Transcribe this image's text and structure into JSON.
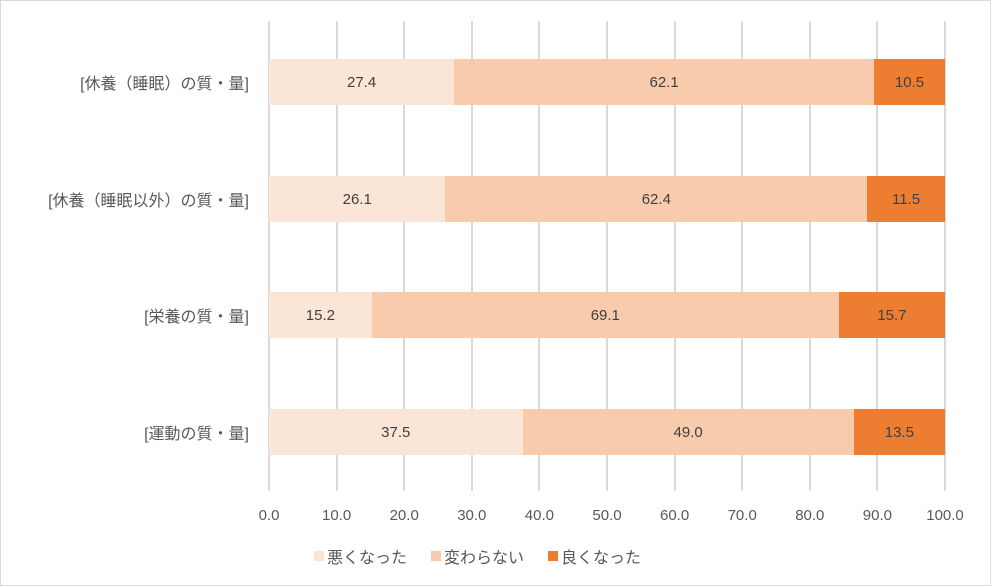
{
  "chart_data": {
    "type": "bar",
    "orientation": "horizontal",
    "stacked": true,
    "title": "",
    "xlabel": "",
    "ylabel": "",
    "xlim": [
      0,
      100
    ],
    "x_ticks": [
      "0.0",
      "10.0",
      "20.0",
      "30.0",
      "40.0",
      "50.0",
      "60.0",
      "70.0",
      "80.0",
      "90.0",
      "100.0"
    ],
    "grid": true,
    "legend_position": "bottom",
    "categories": [
      "[休養（睡眠）の質・量]",
      "[休養（睡眠以外）の質・量]",
      "[栄養の質・量]",
      "[運動の質・量]"
    ],
    "series": [
      {
        "name": "悪くなった",
        "color": "#fbe5d6",
        "values": [
          27.4,
          26.1,
          15.2,
          37.5
        ],
        "labels": [
          "27.4",
          "26.1",
          "15.2",
          "37.5"
        ]
      },
      {
        "name": "変わらない",
        "color": "#f8cbad",
        "values": [
          62.1,
          62.4,
          69.1,
          49.0
        ],
        "labels": [
          "62.1",
          "62.4",
          "69.1",
          "49.0"
        ]
      },
      {
        "name": "良くなった",
        "color": "#ed7d31",
        "values": [
          10.5,
          11.5,
          15.7,
          13.5
        ],
        "labels": [
          "10.5",
          "11.5",
          "15.7",
          "13.5"
        ]
      }
    ]
  }
}
